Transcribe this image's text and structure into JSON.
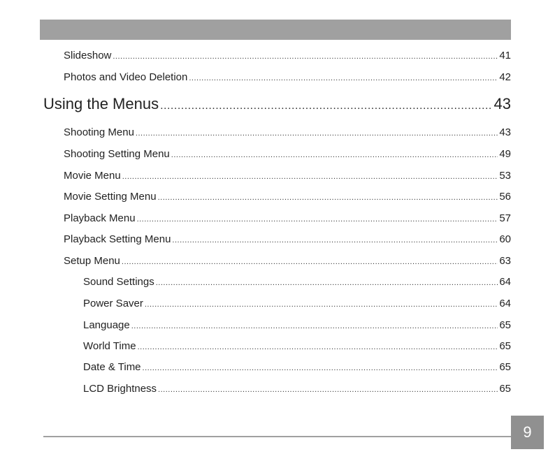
{
  "entries": [
    {
      "title": "Slideshow",
      "page": "41",
      "level": 1
    },
    {
      "title": "Photos and Video Deletion",
      "page": "42",
      "level": 1
    },
    {
      "title": "Using the Menus",
      "page": "43",
      "level": 0
    },
    {
      "title": "Shooting Menu",
      "page": "43",
      "level": 1
    },
    {
      "title": "Shooting Setting Menu",
      "page": "49",
      "level": 1
    },
    {
      "title": "Movie Menu",
      "page": "53",
      "level": 1
    },
    {
      "title": "Movie Setting Menu",
      "page": "56",
      "level": 1
    },
    {
      "title": "Playback Menu",
      "page": "57",
      "level": 1
    },
    {
      "title": "Playback Setting Menu",
      "page": "60",
      "level": 1
    },
    {
      "title": "Setup Menu",
      "page": "63",
      "level": 1
    },
    {
      "title": "Sound Settings",
      "page": "64",
      "level": 2
    },
    {
      "title": "Power Saver",
      "page": "64",
      "level": 2
    },
    {
      "title": "Language",
      "page": "65",
      "level": 2
    },
    {
      "title": "World Time",
      "page": "65",
      "level": 2
    },
    {
      "title": "Date & Time",
      "page": "65",
      "level": 2
    },
    {
      "title": "LCD Brightness",
      "page": "65",
      "level": 2
    }
  ],
  "footer": {
    "page_number": "9"
  },
  "colors": {
    "header_bar": "#a0a0a0",
    "page_box": "#909090"
  }
}
